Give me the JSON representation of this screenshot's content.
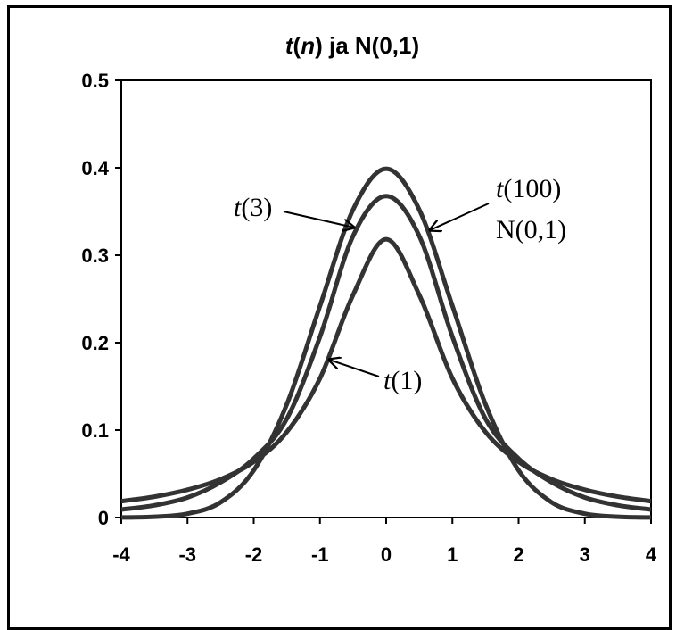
{
  "chart_data": {
    "type": "line",
    "title": {
      "t": "t",
      "open": "(",
      "n": "n",
      "close": ")",
      "rest": " ja N(0,1)"
    },
    "xlabel": "",
    "ylabel": "",
    "xlim": [
      -4,
      4
    ],
    "ylim": [
      0,
      0.5
    ],
    "x_ticks": [
      "-4",
      "-3",
      "-2",
      "-1",
      "0",
      "1",
      "2",
      "3",
      "4"
    ],
    "y_ticks": [
      "0",
      "0.1",
      "0.2",
      "0.3",
      "0.4",
      "0.5"
    ],
    "grid": false,
    "line_color": "#333333",
    "x": [
      -4,
      -3.5,
      -3,
      -2.5,
      -2,
      -1.5,
      -1,
      -0.5,
      0,
      0.5,
      1,
      1.5,
      2,
      2.5,
      3,
      3.5,
      4
    ],
    "series": [
      {
        "key": "t1",
        "values": [
          0.0187,
          0.0239,
          0.0318,
          0.0439,
          0.0637,
          0.0979,
          0.1592,
          0.2546,
          0.3183,
          0.2546,
          0.1592,
          0.0979,
          0.0637,
          0.0439,
          0.0318,
          0.0239,
          0.0187
        ]
      },
      {
        "key": "t3",
        "values": [
          0.0092,
          0.014,
          0.023,
          0.0403,
          0.0675,
          0.113,
          0.2067,
          0.322,
          0.3676,
          0.322,
          0.2067,
          0.113,
          0.0675,
          0.0403,
          0.023,
          0.014,
          0.0092
        ]
      },
      {
        "key": "normal",
        "values": [
          0.0001,
          0.0009,
          0.0044,
          0.0175,
          0.054,
          0.1295,
          0.242,
          0.3521,
          0.3989,
          0.3521,
          0.242,
          0.1295,
          0.054,
          0.0175,
          0.0044,
          0.0009,
          0.0001
        ]
      }
    ],
    "annotations": {
      "t3": {
        "italic": "t",
        "rest": "(3)"
      },
      "t100": {
        "italic": "t",
        "rest": "(100)"
      },
      "normal": "N(0,1)",
      "t1": {
        "italic": "t",
        "rest": "(1)"
      }
    }
  }
}
